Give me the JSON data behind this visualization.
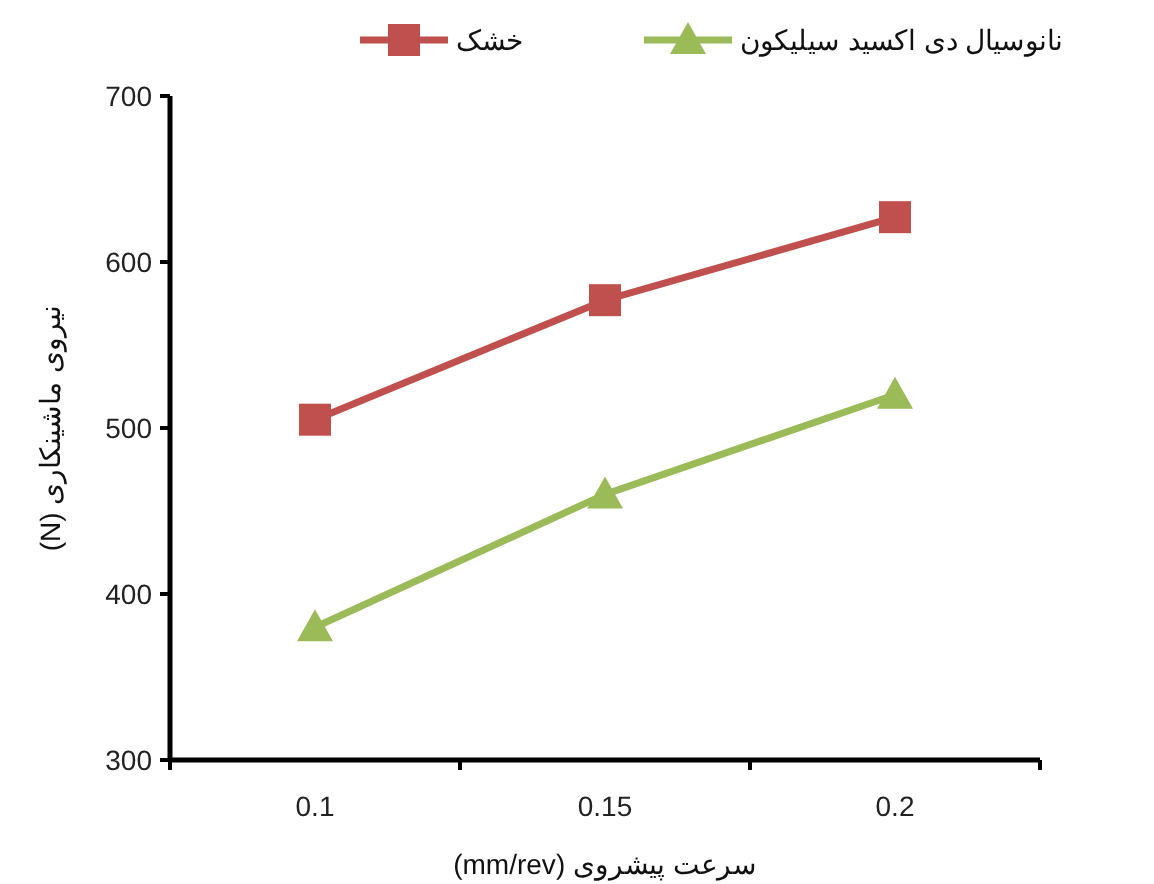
{
  "chart_data": {
    "type": "line",
    "xlabel": "سرعت پیشروی (mm/rev)",
    "ylabel": "نیروی ماشینکاری (N)",
    "categories": [
      "0.1",
      "0.15",
      "0.2"
    ],
    "series": [
      {
        "name": "خشک",
        "color": "#c0504d",
        "marker": "square",
        "values": [
          505,
          577,
          627
        ]
      },
      {
        "name": "نانوسیال دی اکسید سیلیکون",
        "color": "#9bbb59",
        "marker": "triangle",
        "values": [
          380,
          460,
          520
        ]
      }
    ],
    "ylim": [
      300,
      700
    ],
    "yticks": [
      300,
      400,
      500,
      600,
      700
    ],
    "legend": "top"
  }
}
